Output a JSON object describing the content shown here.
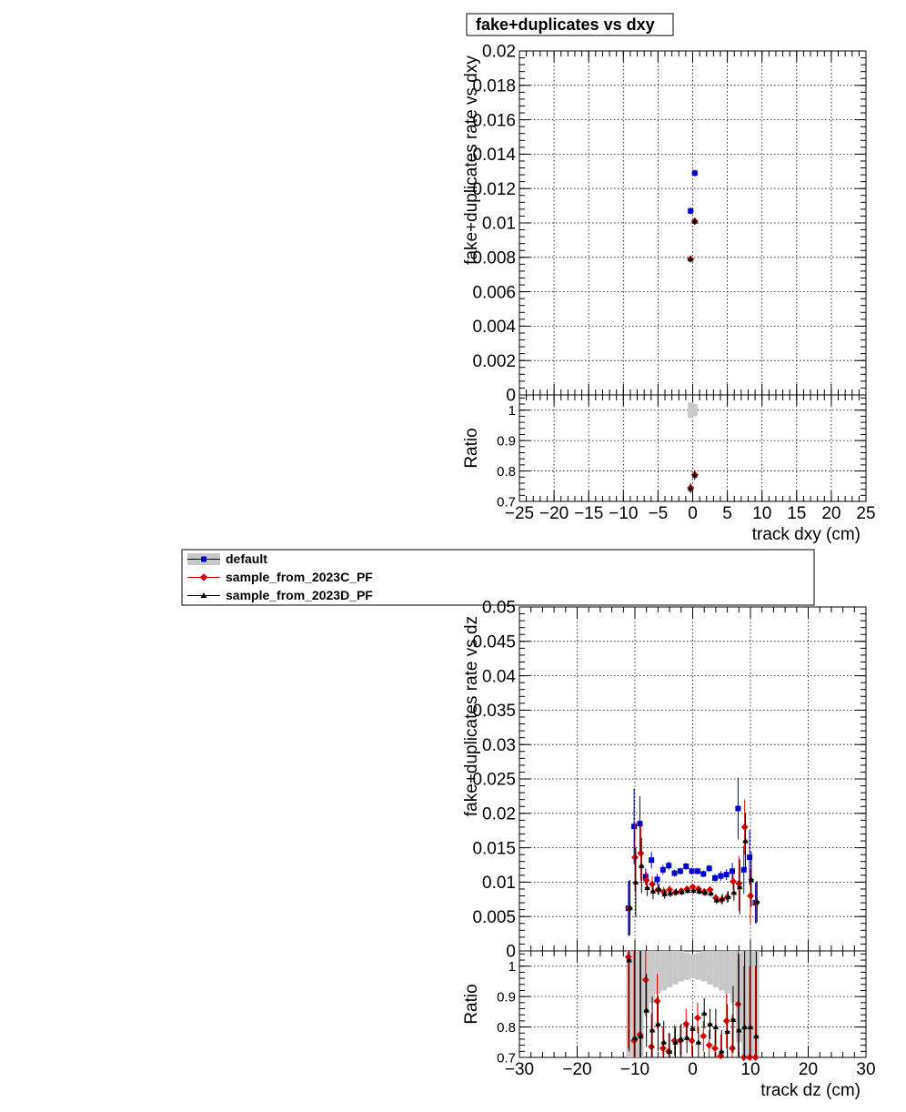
{
  "title": "fake+duplicates vs dxy",
  "legend": {
    "entries": [
      "default",
      "sample_from_2023C_PF",
      "sample_from_2023D_PF"
    ]
  },
  "colors": {
    "default": "#0000cc",
    "sample_from_2023C_PF": "#dd0000",
    "sample_from_2023D_PF": "#000000",
    "band": "#c8c8c8"
  },
  "chart_data": [
    {
      "type": "scatter",
      "panel": "top-main",
      "title": "fake+duplicates vs dxy",
      "xlabel": "",
      "ylabel": "fake+duplicates rate vs dxy",
      "xlim": [
        -25,
        25
      ],
      "ylim": [
        0,
        0.02
      ],
      "grid": true,
      "y_ticks": [
        "0",
        "0.002",
        "0.004",
        "0.006",
        "0.008",
        "0.01",
        "0.012",
        "0.014",
        "0.016",
        "0.018",
        "0.02"
      ],
      "series": [
        {
          "name": "default",
          "x": [
            -0.3,
            0.3
          ],
          "y": [
            0.0107,
            0.0129
          ],
          "yerr": [
            0.0002,
            0.0002
          ]
        },
        {
          "name": "sample_from_2023C_PF",
          "x": [
            -0.3,
            0.3
          ],
          "y": [
            0.0079,
            0.0101
          ],
          "yerr": [
            0.0002,
            0.0002
          ]
        },
        {
          "name": "sample_from_2023D_PF",
          "x": [
            -0.3,
            0.3
          ],
          "y": [
            0.0079,
            0.0101
          ],
          "yerr": [
            0.0002,
            0.0002
          ]
        }
      ]
    },
    {
      "type": "scatter",
      "panel": "top-ratio",
      "xlabel": "track dxy (cm)",
      "ylabel": "Ratio",
      "xlim": [
        -25,
        25
      ],
      "ylim": [
        0.7,
        1.05
      ],
      "grid": true,
      "x_ticks": [
        "−25",
        "−20",
        "−15",
        "−10",
        "−5",
        "0",
        "5",
        "10",
        "15",
        "20",
        "25"
      ],
      "y_ticks": [
        "0.7",
        "0.8",
        "0.9",
        "1"
      ],
      "series": [
        {
          "name": "default",
          "x": [
            -0.3,
            0.3
          ],
          "y": [
            1.0,
            1.0
          ],
          "yerr": [
            0.025,
            0.02
          ]
        },
        {
          "name": "sample_from_2023C_PF",
          "x": [
            -0.3,
            0.3
          ],
          "y": [
            0.745,
            0.788
          ],
          "yerr": [
            0.015,
            0.015
          ]
        },
        {
          "name": "sample_from_2023D_PF",
          "x": [
            -0.3,
            0.3
          ],
          "y": [
            0.742,
            0.786
          ],
          "yerr": [
            0.015,
            0.015
          ]
        }
      ]
    },
    {
      "type": "scatter",
      "panel": "bottom-main",
      "xlabel": "",
      "ylabel": "fake+duplicates rate vs dz",
      "xlim": [
        -30,
        30
      ],
      "ylim": [
        0,
        0.05
      ],
      "grid": true,
      "y_ticks": [
        "0",
        "0.005",
        "0.01",
        "0.015",
        "0.02",
        "0.025",
        "0.03",
        "0.035",
        "0.04",
        "0.045",
        "0.05"
      ],
      "x": [
        -11,
        -10,
        -9,
        -8,
        -7,
        -6,
        -5,
        -4,
        -3,
        -2,
        -1,
        0,
        1,
        2,
        3,
        4,
        5,
        6,
        7,
        8,
        9,
        10,
        11
      ],
      "series": [
        {
          "name": "default",
          "y": [
            0.0062,
            0.0181,
            0.0185,
            0.0108,
            0.0132,
            0.0104,
            0.0118,
            0.0124,
            0.0113,
            0.0116,
            0.0123,
            0.0116,
            0.0116,
            0.0112,
            0.012,
            0.0106,
            0.0109,
            0.0111,
            0.0116,
            0.0207,
            0.0118,
            0.0136,
            0.007
          ],
          "yerr": [
            0.004,
            0.0055,
            0.004,
            0.0012,
            0.0012,
            0.0008,
            0.0007,
            0.0006,
            0.0005,
            0.0005,
            0.0005,
            0.0005,
            0.0005,
            0.0005,
            0.0005,
            0.0006,
            0.0007,
            0.0008,
            0.0012,
            0.0045,
            0.0035,
            0.004,
            0.003
          ]
        },
        {
          "name": "sample_from_2023C_PF",
          "y": [
            0.0062,
            0.0136,
            0.0142,
            0.0103,
            0.0097,
            0.0089,
            0.0086,
            0.0089,
            0.0085,
            0.0087,
            0.009,
            0.0093,
            0.009,
            0.0086,
            0.0089,
            0.0077,
            0.0074,
            0.0078,
            0.0101,
            0.0098,
            0.018,
            0.008,
            0.007
          ],
          "yerr": [
            0.004,
            0.005,
            0.004,
            0.0012,
            0.0012,
            0.0008,
            0.0007,
            0.0006,
            0.0005,
            0.0005,
            0.0005,
            0.0005,
            0.0005,
            0.0005,
            0.0005,
            0.0006,
            0.0007,
            0.0008,
            0.0012,
            0.004,
            0.004,
            0.004,
            0.003
          ]
        },
        {
          "name": "sample_from_2023D_PF",
          "y": [
            0.0063,
            0.01,
            0.0124,
            0.0092,
            0.0087,
            0.009,
            0.0083,
            0.0084,
            0.0086,
            0.0086,
            0.0088,
            0.0088,
            0.0087,
            0.0085,
            0.0084,
            0.0074,
            0.0076,
            0.0079,
            0.0085,
            0.0093,
            0.016,
            0.0104,
            0.0072
          ],
          "yerr": [
            0.004,
            0.005,
            0.004,
            0.0012,
            0.0012,
            0.0008,
            0.0007,
            0.0006,
            0.0005,
            0.0005,
            0.0005,
            0.0005,
            0.0005,
            0.0005,
            0.0005,
            0.0006,
            0.0007,
            0.0008,
            0.0012,
            0.004,
            0.004,
            0.004,
            0.003
          ]
        }
      ]
    },
    {
      "type": "scatter",
      "panel": "bottom-ratio",
      "xlabel": "track dz (cm)",
      "ylabel": "Ratio",
      "xlim": [
        -30,
        30
      ],
      "ylim": [
        0.7,
        1.05
      ],
      "grid": true,
      "x_ticks": [
        "−30",
        "−20",
        "−10",
        "0",
        "10",
        "20",
        "30"
      ],
      "y_ticks": [
        "0.7",
        "0.8",
        "0.9",
        "1"
      ],
      "x": [
        -11,
        -10,
        -9,
        -8,
        -7,
        -6,
        -5,
        -4,
        -3,
        -2,
        -1,
        0,
        1,
        2,
        3,
        4,
        5,
        6,
        7,
        8,
        9,
        10,
        11
      ],
      "band_halfwidth": [
        0.35,
        0.35,
        0.35,
        0.15,
        0.12,
        0.09,
        0.08,
        0.07,
        0.06,
        0.05,
        0.045,
        0.04,
        0.045,
        0.05,
        0.06,
        0.07,
        0.08,
        0.09,
        0.12,
        0.25,
        0.35,
        0.35,
        0.35
      ],
      "series": [
        {
          "name": "sample_from_2023C_PF",
          "y": [
            1.03,
            0.755,
            0.775,
            0.955,
            0.735,
            0.885,
            0.73,
            0.72,
            0.755,
            0.755,
            0.81,
            0.755,
            0.83,
            0.77,
            0.74,
            0.73,
            0.705,
            0.82,
            0.73,
            0.875,
            0.7,
            0.7,
            0.7
          ],
          "yerr": [
            0.3,
            0.3,
            0.3,
            0.12,
            0.11,
            0.09,
            0.07,
            0.06,
            0.05,
            0.05,
            0.05,
            0.05,
            0.05,
            0.05,
            0.05,
            0.06,
            0.07,
            0.09,
            0.11,
            0.25,
            0.3,
            0.3,
            0.3
          ]
        },
        {
          "name": "sample_from_2023D_PF",
          "y": [
            1.02,
            0.765,
            0.77,
            0.855,
            0.79,
            0.81,
            0.75,
            0.72,
            0.75,
            0.76,
            0.765,
            0.795,
            0.75,
            0.845,
            0.81,
            0.8,
            0.72,
            0.785,
            0.825,
            0.79,
            0.8,
            0.8,
            0.77
          ],
          "yerr": [
            0.3,
            0.3,
            0.3,
            0.12,
            0.11,
            0.09,
            0.07,
            0.06,
            0.05,
            0.05,
            0.05,
            0.05,
            0.05,
            0.05,
            0.05,
            0.06,
            0.07,
            0.09,
            0.11,
            0.25,
            0.3,
            0.3,
            0.3
          ]
        }
      ]
    }
  ]
}
